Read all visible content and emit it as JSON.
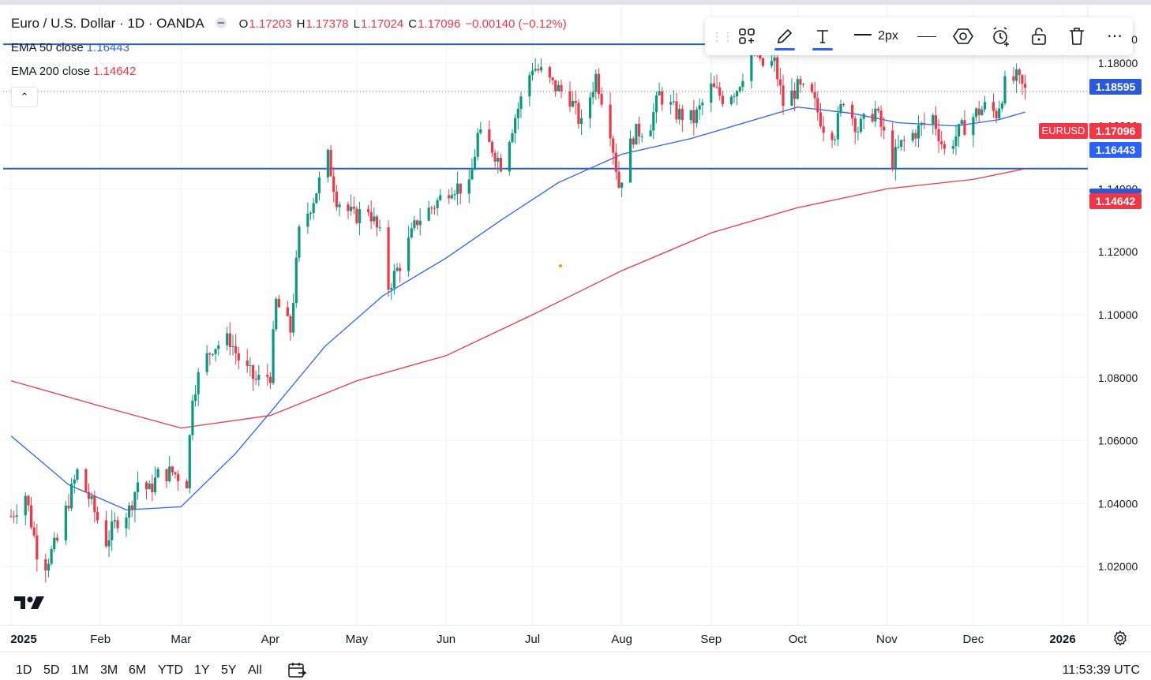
{
  "header": {
    "symbol_title": "Euro / U.S. Dollar · 1D · OANDA",
    "ohlc": [
      {
        "label": "O",
        "value": "1.17203"
      },
      {
        "label": "H",
        "value": "1.17378"
      },
      {
        "label": "L",
        "value": "1.17024"
      },
      {
        "label": "C",
        "value": "1.17096"
      }
    ],
    "change": "−0.00140 (−0.12%)"
  },
  "indicators": [
    {
      "name": "EMA 50 close",
      "value": "1.16443",
      "color": "#2962ff"
    },
    {
      "name": "EMA 200 close",
      "value": "1.14642",
      "color": "#f23645"
    }
  ],
  "toolbar": {
    "width_label": "2px",
    "icons": [
      "drag-handle-icon",
      "templates-icon",
      "pencil-icon",
      "text-icon",
      "line-style-icon",
      "line-icon",
      "hexagon-icon",
      "alarm-add-icon",
      "unlock-icon",
      "trash-icon",
      "more-icon"
    ]
  },
  "price_tags": {
    "hline_upper": "1.18595",
    "symbol": "EURUSD",
    "last": "1.17096",
    "ema50": "1.16443",
    "ema200": "1.14642",
    "partial_top": "0"
  },
  "range_buttons": [
    "1D",
    "5D",
    "1M",
    "3M",
    "6M",
    "YTD",
    "1Y",
    "5Y",
    "All"
  ],
  "clock": "11:53:39 UTC",
  "colors": {
    "up": "#089981",
    "down": "#f23645",
    "ema50": "#2962ff",
    "ema200": "#f23645",
    "hline": "#2a5ad8"
  },
  "chart_data": {
    "type": "candlestick",
    "symbol": "EURUSD",
    "x_labels": [
      "2025",
      "Feb",
      "Mar",
      "Apr",
      "May",
      "Jun",
      "Jul",
      "Aug",
      "Sep",
      "Oct",
      "Nov",
      "Dec",
      "2026"
    ],
    "y_ticks": [
      1.02,
      1.04,
      1.06,
      1.08,
      1.1,
      1.12,
      1.14,
      1.16,
      1.18
    ],
    "y_tick_labels": [
      "1.02000",
      "1.04000",
      "1.06000",
      "1.08000",
      "1.10000",
      "1.12000",
      "1.14000",
      "1.16000",
      "1.18000"
    ],
    "ylim": [
      1.0015,
      1.198
    ],
    "grid": true,
    "horizontal_lines": [
      1.18595,
      1.14642
    ],
    "close_path": [
      [
        "2025-01-01",
        1.036
      ],
      [
        "2025-01-06",
        1.043
      ],
      [
        "2025-01-10",
        1.025
      ],
      [
        "2025-01-13",
        1.021
      ],
      [
        "2025-01-17",
        1.028
      ],
      [
        "2025-01-21",
        1.041
      ],
      [
        "2025-01-24",
        1.05
      ],
      [
        "2025-01-28",
        1.042
      ],
      [
        "2025-02-03",
        1.028
      ],
      [
        "2025-02-07",
        1.035
      ],
      [
        "2025-02-11",
        1.038
      ],
      [
        "2025-02-14",
        1.047
      ],
      [
        "2025-02-18",
        1.044
      ],
      [
        "2025-02-21",
        1.049
      ],
      [
        "2025-02-26",
        1.05
      ],
      [
        "2025-03-03",
        1.047
      ],
      [
        "2025-03-05",
        1.075
      ],
      [
        "2025-03-08",
        1.083
      ],
      [
        "2025-03-12",
        1.09
      ],
      [
        "2025-03-18",
        1.092
      ],
      [
        "2025-03-22",
        1.084
      ],
      [
        "2025-03-27",
        1.079
      ],
      [
        "2025-04-01",
        1.081
      ],
      [
        "2025-04-03",
        1.104
      ],
      [
        "2025-04-08",
        1.095
      ],
      [
        "2025-04-11",
        1.126
      ],
      [
        "2025-04-16",
        1.137
      ],
      [
        "2025-04-21",
        1.15
      ],
      [
        "2025-04-24",
        1.137
      ],
      [
        "2025-04-30",
        1.131
      ],
      [
        "2025-05-05",
        1.134
      ],
      [
        "2025-05-09",
        1.125
      ],
      [
        "2025-05-12",
        1.109
      ],
      [
        "2025-05-16",
        1.116
      ],
      [
        "2025-05-22",
        1.13
      ],
      [
        "2025-05-28",
        1.135
      ],
      [
        "2025-06-03",
        1.141
      ],
      [
        "2025-06-09",
        1.14
      ],
      [
        "2025-06-12",
        1.157
      ],
      [
        "2025-06-17",
        1.153
      ],
      [
        "2025-06-20",
        1.148
      ],
      [
        "2025-06-25",
        1.163
      ],
      [
        "2025-07-01",
        1.179
      ],
      [
        "2025-07-04",
        1.177
      ],
      [
        "2025-07-08",
        1.173
      ],
      [
        "2025-07-14",
        1.169
      ],
      [
        "2025-07-18",
        1.16
      ],
      [
        "2025-07-23",
        1.176
      ],
      [
        "2025-07-28",
        1.159
      ],
      [
        "2025-07-31",
        1.141
      ],
      [
        "2025-08-05",
        1.157
      ],
      [
        "2025-08-11",
        1.161
      ],
      [
        "2025-08-14",
        1.17
      ],
      [
        "2025-08-20",
        1.164
      ],
      [
        "2025-08-26",
        1.162
      ],
      [
        "2025-09-01",
        1.172
      ],
      [
        "2025-09-05",
        1.169
      ],
      [
        "2025-09-10",
        1.172
      ],
      [
        "2025-09-16",
        1.186
      ],
      [
        "2025-09-18",
        1.179
      ],
      [
        "2025-09-23",
        1.18
      ],
      [
        "2025-09-26",
        1.167
      ],
      [
        "2025-10-01",
        1.172
      ],
      [
        "2025-10-06",
        1.169
      ],
      [
        "2025-10-10",
        1.16
      ],
      [
        "2025-10-14",
        1.158
      ],
      [
        "2025-10-17",
        1.169
      ],
      [
        "2025-10-22",
        1.159
      ],
      [
        "2025-10-28",
        1.165
      ],
      [
        "2025-11-03",
        1.149
      ],
      [
        "2025-11-06",
        1.154
      ],
      [
        "2025-11-12",
        1.159
      ],
      [
        "2025-11-17",
        1.163
      ],
      [
        "2025-11-21",
        1.152
      ],
      [
        "2025-11-26",
        1.158
      ],
      [
        "2025-12-02",
        1.164
      ],
      [
        "2025-12-05",
        1.166
      ],
      [
        "2025-12-09",
        1.164
      ],
      [
        "2025-12-12",
        1.173
      ],
      [
        "2025-12-16",
        1.175
      ],
      [
        "2025-12-19",
        1.171
      ]
    ],
    "ema50_path": [
      [
        "2025-01-01",
        1.0615
      ],
      [
        "2025-01-21",
        1.046
      ],
      [
        "2025-02-10",
        1.038
      ],
      [
        "2025-03-01",
        1.039
      ],
      [
        "2025-03-20",
        1.056
      ],
      [
        "2025-04-01",
        1.069
      ],
      [
        "2025-04-20",
        1.09
      ],
      [
        "2025-05-10",
        1.106
      ],
      [
        "2025-06-01",
        1.118
      ],
      [
        "2025-06-20",
        1.13
      ],
      [
        "2025-07-10",
        1.142
      ],
      [
        "2025-08-01",
        1.151
      ],
      [
        "2025-08-25",
        1.156
      ],
      [
        "2025-09-20",
        1.163
      ],
      [
        "2025-10-01",
        1.166
      ],
      [
        "2025-10-20",
        1.164
      ],
      [
        "2025-11-05",
        1.161
      ],
      [
        "2025-11-25",
        1.16
      ],
      [
        "2025-12-10",
        1.162
      ],
      [
        "2025-12-19",
        1.1644
      ]
    ],
    "ema200_path": [
      [
        "2025-01-01",
        1.079
      ],
      [
        "2025-02-01",
        1.071
      ],
      [
        "2025-03-01",
        1.064
      ],
      [
        "2025-04-01",
        1.068
      ],
      [
        "2025-05-01",
        1.079
      ],
      [
        "2025-06-01",
        1.087
      ],
      [
        "2025-07-01",
        1.1
      ],
      [
        "2025-08-01",
        1.114
      ],
      [
        "2025-09-01",
        1.126
      ],
      [
        "2025-10-01",
        1.134
      ],
      [
        "2025-11-01",
        1.14
      ],
      [
        "2025-12-01",
        1.143
      ],
      [
        "2025-12-19",
        1.1464
      ]
    ]
  }
}
